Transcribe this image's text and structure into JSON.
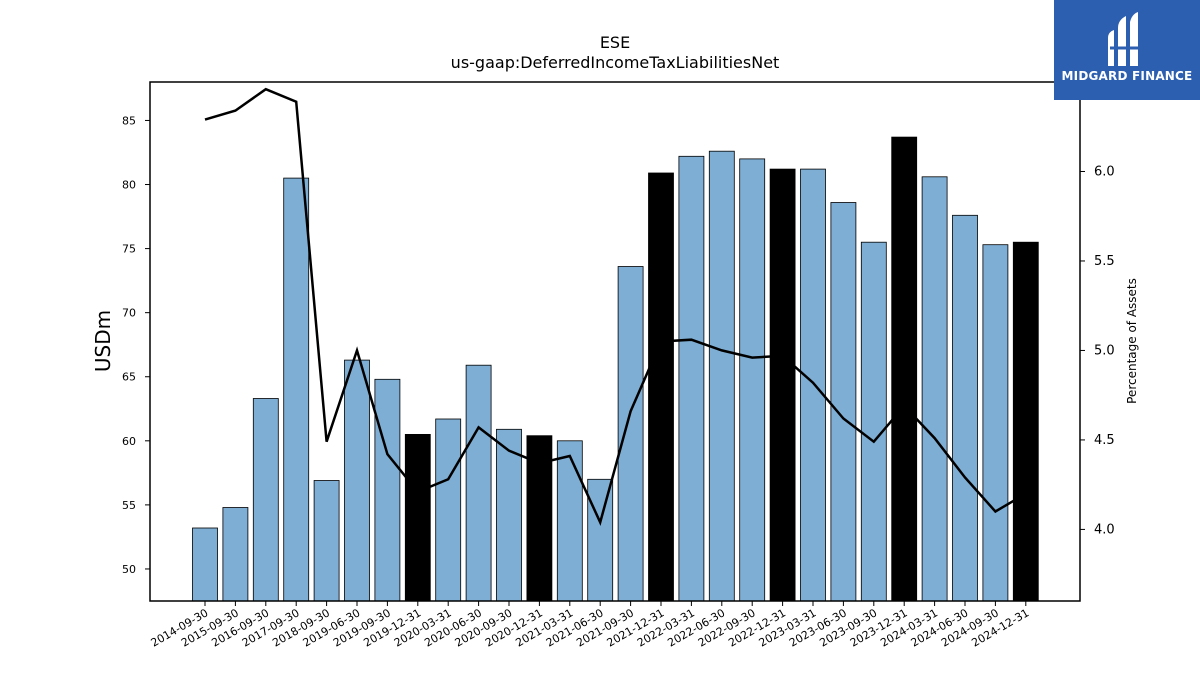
{
  "chart_data": {
    "type": "bar+line",
    "title": "ESE",
    "subtitle": "us-gaap:DeferredIncomeTaxLiabilitiesNet",
    "ylabel": "USDm",
    "y2label": "Percentage of Assets",
    "ylim": [
      47.5,
      88.0
    ],
    "y2lim": [
      3.6,
      6.5
    ],
    "yticks": [
      50,
      55,
      60,
      65,
      70,
      75,
      80,
      85
    ],
    "y2ticks": [
      "4.0",
      "4.5",
      "5.0",
      "5.5",
      "6.0"
    ],
    "categories": [
      "2014-09-30",
      "2015-09-30",
      "2016-09-30",
      "2017-09-30",
      "2018-09-30",
      "2019-06-30",
      "2019-09-30",
      "2019-12-31",
      "2020-03-31",
      "2020-06-30",
      "2020-09-30",
      "2020-12-31",
      "2021-03-31",
      "2021-06-30",
      "2021-09-30",
      "2021-12-31",
      "2022-03-31",
      "2022-06-30",
      "2022-09-30",
      "2022-12-31",
      "2023-03-31",
      "2023-06-30",
      "2023-09-30",
      "2023-12-31",
      "2024-03-31",
      "2024-06-30",
      "2024-09-30",
      "2024-12-31"
    ],
    "values": [
      53.2,
      54.8,
      63.3,
      80.5,
      56.9,
      66.3,
      64.8,
      60.5,
      61.7,
      65.9,
      60.9,
      60.4,
      60.0,
      57.0,
      73.6,
      80.9,
      82.2,
      82.6,
      82.0,
      81.2,
      81.2,
      78.6,
      75.5,
      83.7,
      80.6,
      77.6,
      75.3,
      75.5
    ],
    "highlight": [
      false,
      false,
      false,
      false,
      false,
      false,
      false,
      true,
      false,
      false,
      false,
      true,
      false,
      false,
      false,
      true,
      false,
      false,
      false,
      true,
      false,
      false,
      false,
      true,
      false,
      false,
      false,
      true
    ],
    "pct_assets": [
      6.29,
      6.34,
      6.46,
      6.39,
      4.49,
      5.0,
      4.42,
      4.21,
      4.28,
      4.57,
      4.44,
      4.37,
      4.41,
      4.04,
      4.66,
      5.05,
      5.06,
      5.0,
      4.96,
      4.97,
      4.82,
      4.62,
      4.49,
      4.69,
      4.51,
      4.29,
      4.1,
      4.2
    ],
    "colors": {
      "bar": "#7eaed3",
      "bar_highlight": "#000000",
      "line": "#000000"
    }
  },
  "logo": {
    "text": "MIDGARD FINANCE"
  }
}
